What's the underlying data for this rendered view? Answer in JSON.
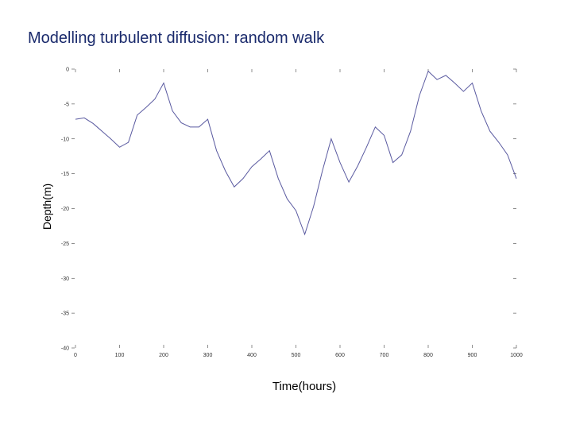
{
  "chart_data": {
    "type": "line",
    "title": "Modelling turbulent diffusion: random walk",
    "x_label": "Time(hours)",
    "y_label": "Depth(m)",
    "x": [
      0,
      20,
      40,
      60,
      80,
      100,
      120,
      140,
      160,
      180,
      200,
      220,
      240,
      260,
      280,
      300,
      320,
      340,
      360,
      380,
      400,
      420,
      440,
      460,
      480,
      500,
      520,
      540,
      560,
      580,
      600,
      620,
      640,
      660,
      680,
      700,
      720,
      740,
      760,
      780,
      800,
      820,
      840,
      860,
      880,
      900,
      920,
      940,
      960,
      980,
      1000
    ],
    "series": [
      {
        "color": "#5a5aa0",
        "values": [
          -7.2,
          -7.0,
          -7.8,
          -8.9,
          -10,
          -11.2,
          -10.5,
          -6.6,
          -5.5,
          -4.3,
          -2,
          -6,
          -7.7,
          -8.3,
          -8.3,
          -7.2,
          -11.7,
          -14.6,
          -16.9,
          -15.7,
          -14,
          -12.9,
          -11.7,
          -15.7,
          -18.6,
          -20.3,
          -23.7,
          -19.7,
          -14.6,
          -10,
          -13.4,
          -16.2,
          -13.9,
          -11.2,
          -8.3,
          -9.5,
          -13.4,
          -12.3,
          -8.9,
          -3.8,
          -0.3,
          -1.5,
          -0.9,
          -2,
          -3.2,
          -2,
          -6,
          -8.9,
          -10.5,
          -12.3,
          -15.7
        ]
      }
    ],
    "xlim": [
      0,
      1000
    ],
    "xticks": [
      0,
      100,
      200,
      300,
      400,
      500,
      600,
      700,
      800,
      900,
      1000
    ],
    "ylim": [
      -40,
      0
    ],
    "yticks": [
      0,
      -5,
      -10,
      -15,
      -20,
      -25,
      -30,
      -35,
      -40
    ]
  }
}
